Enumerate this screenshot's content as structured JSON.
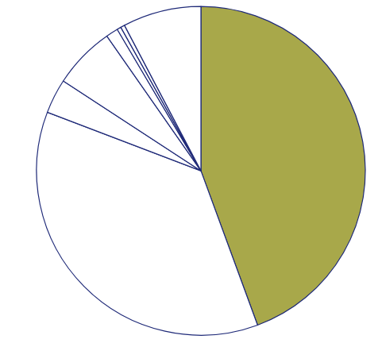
{
  "chart_data": {
    "type": "pie",
    "values": [
      44.4,
      36.4,
      3.4,
      6.1,
      1.2,
      0.4,
      0.4,
      7.7
    ],
    "colors": [
      "#a8a84a",
      "#ffffff",
      "#ffffff",
      "#ffffff",
      "#ffffff",
      "#ffffff",
      "#ffffff",
      "#ffffff"
    ],
    "data_labels": false
  }
}
